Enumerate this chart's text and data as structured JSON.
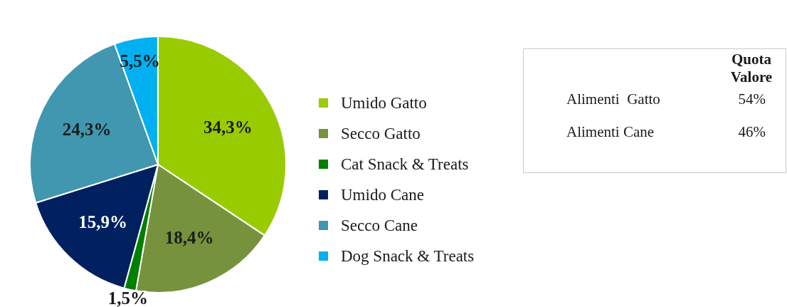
{
  "chart_data": [
    {
      "type": "pie",
      "categories": [
        "Umido Gatto",
        "Secco Gatto",
        "Cat Snack & Treats",
        "Umido Cane",
        "Secco Cane",
        "Dog Snack & Treats"
      ],
      "values": [
        34.3,
        18.4,
        1.5,
        15.9,
        24.3,
        5.5
      ],
      "colors": [
        "#99cc00",
        "#76923c",
        "#008000",
        "#002060",
        "#4197b0",
        "#00b0f0"
      ],
      "value_labels": [
        "34,3%",
        "18,4%",
        "1,5%",
        "15,9%",
        "24,3%",
        "5,5%"
      ],
      "legend": "right"
    },
    {
      "type": "other",
      "title": "Quota Valore",
      "categories": [
        "Alimenti  Gatto",
        "Alimenti Cane"
      ],
      "value_labels": [
        "54%",
        "46%"
      ]
    }
  ]
}
